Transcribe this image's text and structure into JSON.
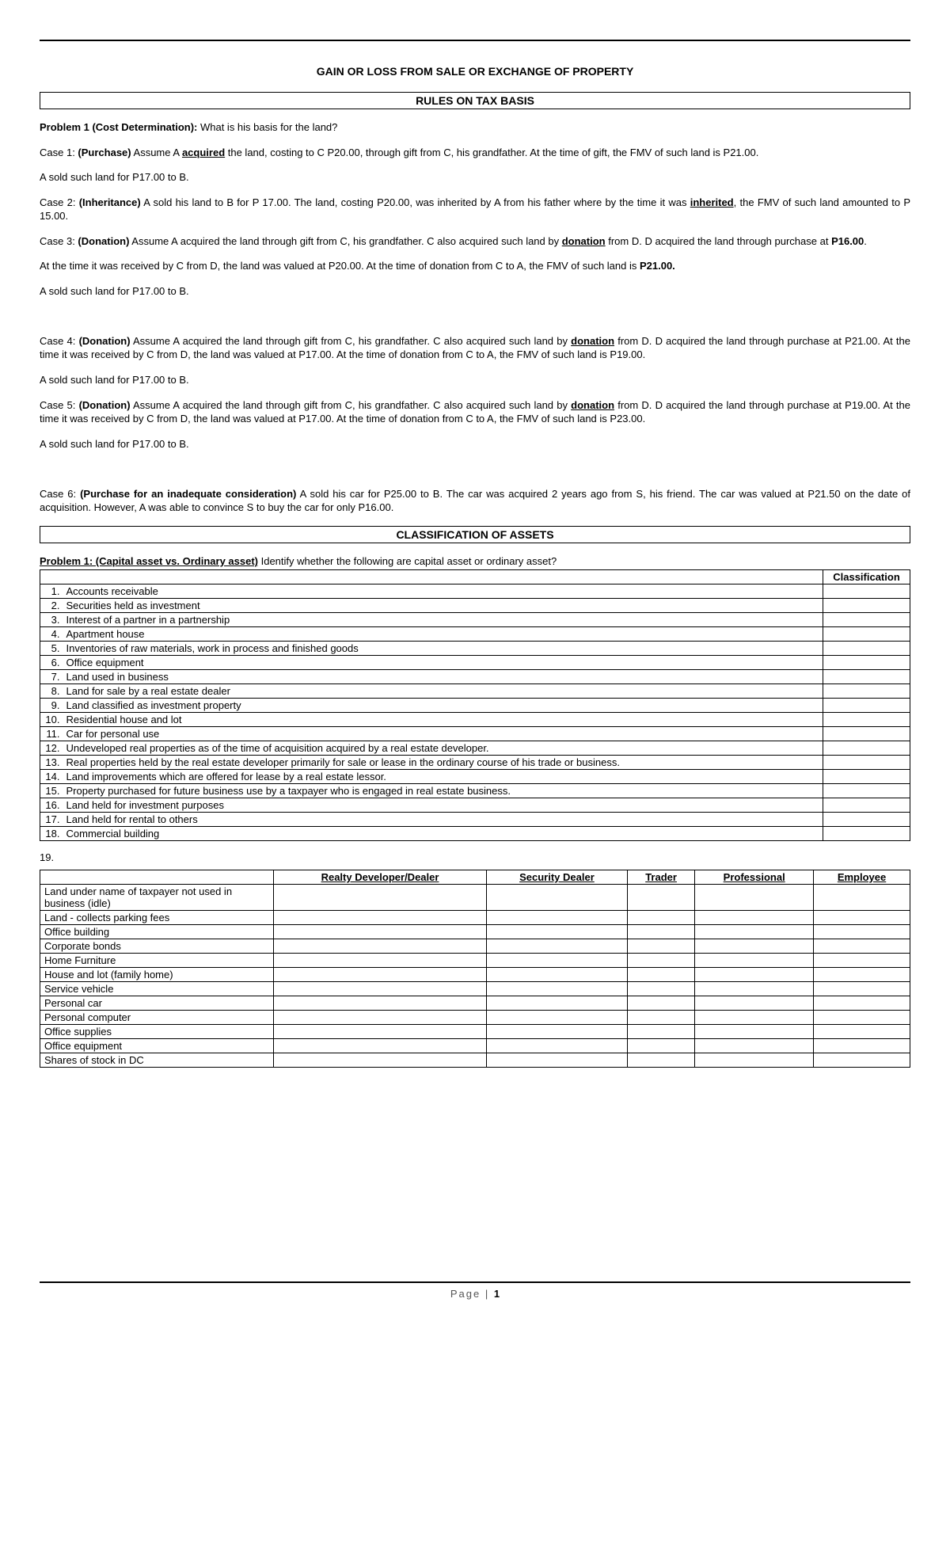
{
  "title": "GAIN OR LOSS FROM SALE OR EXCHANGE OF PROPERTY",
  "section1": "RULES ON TAX BASIS",
  "p1_lead": "Problem 1 (Cost Determination):",
  "p1_q": "  What is his basis for the land?",
  "c1_a": "Case 1:  ",
  "c1_b": "(Purchase)",
  "c1_c": " Assume A ",
  "c1_d": "acquired",
  "c1_e": " the land, costing to C P20.00, through gift from C, his grandfather. At the time of gift, the FMV of such land is P21.00.",
  "sold": "A sold such land for P17.00 to B.",
  "c2_a": "Case 2: ",
  "c2_b": "(Inheritance)",
  "c2_c": "  A sold his land to B for P 17.00. The land, costing P20.00, was inherited by A from his father where by the time it was ",
  "c2_d": "inherited",
  "c2_e": ", the FMV of such land amounted to P 15.00.",
  "c3_a": "Case 3: ",
  "c3_b": "(Donation)",
  "c3_c": "  Assume A acquired the land through gift from C, his grandfather. C  also acquired such land by ",
  "c3_d": "donation",
  "c3_e": " from D. D acquired the land through purchase at ",
  "c3_f": "P16.00",
  "c3_g": ".",
  "c3_p2a": "At the time it was received by C from D, the land was valued at P20.00. At the time of donation from C to A, the FMV of such land is ",
  "c3_p2b": "P21.00.",
  "c4_a": "Case 4:  ",
  "c4_b": "(Donation)",
  "c4_c": " Assume A acquired the land through gift from C, his grandfather. C also acquired such land by ",
  "c4_d": "donation",
  "c4_e": " from D. D acquired the land through purchase at P21.00. At the time it was received by C from D, the land was valued at P17.00. At the time of donation from C to A, the FMV of such land is P19.00.",
  "c5_a": "Case 5:  ",
  "c5_b": "(Donation)",
  "c5_c": "  Assume A acquired the land through gift from C, his grandfather. C also acquired such land by ",
  "c5_d": "donation",
  "c5_e": " from D. D acquired the land through purchase at P19.00. At the time it was received by C from D, the land was valued at P17.00. At the time of donation from C to A, the FMV of such land is P23.00.",
  "c6_a": "Case 6: ",
  "c6_b": "(Purchase for an inadequate consideration)",
  "c6_c": "  A sold his car for P25.00 to B. The car was acquired 2 years ago from S, his friend. The car was valued at P21.50 on the date of acquisition. However, A was able to convince S to buy the car for only P16.00.",
  "section2": "CLASSIFICATION OF ASSETS",
  "p2_lead": "Problem 1:  (Capital asset vs. Ordinary asset)",
  "p2_q": "  Identify whether the following are capital asset or ordinary asset?",
  "class_hdr": "Classification",
  "rows": [
    {
      "n": "1.",
      "d": "Accounts receivable"
    },
    {
      "n": "2.",
      "d": "Securities held as investment"
    },
    {
      "n": "3.",
      "d": "Interest of a partner in a partnership"
    },
    {
      "n": "4.",
      "d": "Apartment house"
    },
    {
      "n": "5.",
      "d": "Inventories of raw materials, work in process and finished goods"
    },
    {
      "n": "6.",
      "d": "Office equipment"
    },
    {
      "n": "7.",
      "d": "Land used in business"
    },
    {
      "n": "8.",
      "d": "Land for sale by a real estate dealer"
    },
    {
      "n": "9.",
      "d": "Land classified as investment property"
    },
    {
      "n": "10.",
      "d": "Residential house and lot"
    },
    {
      "n": "11.",
      "d": "Car for personal use"
    },
    {
      "n": "12.",
      "d": "Undeveloped real properties as of the time of acquisition acquired by a real estate developer."
    },
    {
      "n": "13.",
      "d": "Real properties held by the real estate developer primarily for sale or lease in the ordinary course of his trade or business."
    },
    {
      "n": "14.",
      "d": "Land improvements which are offered for lease by a real estate lessor."
    },
    {
      "n": "15.",
      "d": "Property purchased for future business use by a taxpayer who is engaged in real estate business."
    },
    {
      "n": "16.",
      "d": "Land held for investment purposes"
    },
    {
      "n": "17.",
      "d": "Land held for rental to others"
    },
    {
      "n": "18.",
      "d": "Commercial building"
    }
  ],
  "q19": "19.",
  "t19_hdrs": [
    "Realty Developer/Dealer",
    "Security Dealer",
    "Trader",
    "Professional",
    "Employee"
  ],
  "t19_rows": [
    "Land under name of taxpayer not used in business (idle)",
    "Land - collects parking fees",
    "Office building",
    "Corporate bonds",
    "Home Furniture",
    "House and lot (family home)",
    "Service vehicle",
    "Personal car",
    "Personal computer",
    "Office supplies",
    "Office equipment",
    "Shares of stock in DC"
  ],
  "footer_label": "Page |",
  "footer_num": "1"
}
